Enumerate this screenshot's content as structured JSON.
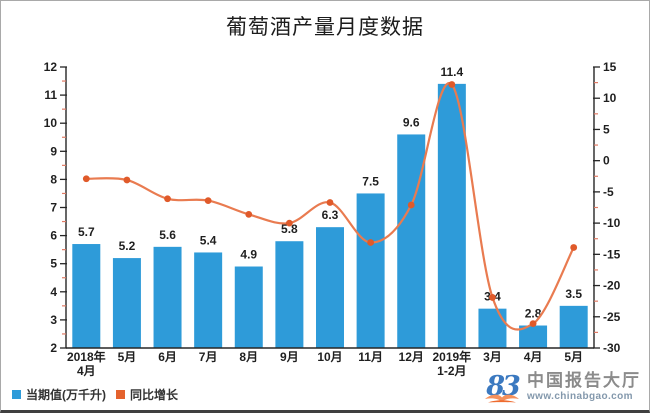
{
  "title": "葡萄酒产量月度数据",
  "chart_data": {
    "type": "combo-bar-line",
    "title": "葡萄酒产量月度数据",
    "categories": [
      "2018年|4月",
      "5月",
      "6月",
      "7月",
      "8月",
      "9月",
      "10月",
      "11月",
      "12月",
      "2019年|1-2月",
      "3月",
      "4月",
      "5月"
    ],
    "series": [
      {
        "name": "当期值(万千升)",
        "type": "bar",
        "axis": "left",
        "color": "#2e9bd9",
        "values": [
          5.7,
          5.2,
          5.6,
          5.4,
          4.9,
          5.8,
          6.3,
          7.5,
          9.6,
          11.4,
          3.4,
          2.8,
          3.5
        ]
      },
      {
        "name": "同比增长",
        "type": "line",
        "axis": "right",
        "color": "#e97b50",
        "marker_color": "#e05a2a",
        "values": [
          -2.9,
          -3.1,
          -6.1,
          -6.4,
          -8.6,
          -10,
          -6.7,
          -13.1,
          -7.1,
          12.2,
          -21.9,
          -26.1,
          -13.9
        ]
      }
    ],
    "left_axis": {
      "range": [
        2,
        12
      ],
      "tick_step": 1,
      "minor_tick_step": 0.5
    },
    "right_axis": {
      "range": [
        -30,
        15
      ],
      "tick_step": 5,
      "minor_tick_step": 2.5
    },
    "grid": false,
    "legend_position": "bottom-left"
  },
  "legend": {
    "items": [
      {
        "label": "当期值(万千升)",
        "color": "#2e9bd9"
      },
      {
        "label": "同比增长",
        "color": "#e4622d"
      }
    ]
  },
  "watermark": {
    "name": "中国报告大厅",
    "url": "www.chinabgao.com"
  }
}
